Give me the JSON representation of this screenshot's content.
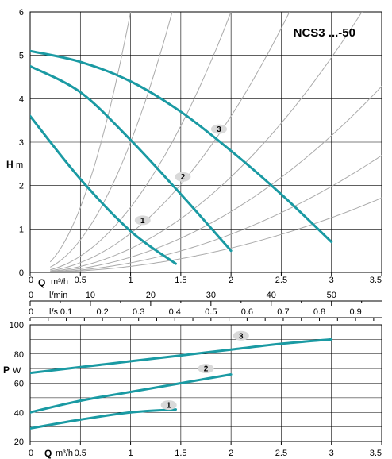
{
  "chart_data": [
    {
      "type": "line",
      "title": "NCS3 ...-50",
      "ylabel": "H",
      "yunit": "m",
      "xlabel": "Q",
      "xunit": "m³/h",
      "xlim": [
        0,
        3.5
      ],
      "ylim": [
        0,
        6
      ],
      "xticks": [
        "0",
        "0.5",
        "1",
        "1.5",
        "2",
        "2.5",
        "3",
        "3.5"
      ],
      "yticks": [
        "0",
        "1",
        "2",
        "3",
        "4",
        "5",
        "6"
      ],
      "grid": true,
      "secondary_axes": [
        {
          "unit": "l/min",
          "ticks": [
            "0",
            "10",
            "20",
            "30",
            "40",
            "50"
          ],
          "values": [
            0,
            10,
            20,
            30,
            40,
            50
          ]
        },
        {
          "unit": "l/s",
          "ticks": [
            "0",
            "0.1",
            "0.2",
            "0.3",
            "0.4",
            "0.5",
            "0.6",
            "0.7",
            "0.8",
            "0.9"
          ],
          "values": [
            0,
            0.1,
            0.2,
            0.3,
            0.4,
            0.5,
            0.6,
            0.7,
            0.8,
            0.9
          ]
        }
      ],
      "series": [
        {
          "label": "1",
          "x": [
            0,
            0.5,
            1.0,
            1.45
          ],
          "y": [
            3.6,
            2.15,
            0.95,
            0.2
          ]
        },
        {
          "label": "2",
          "x": [
            0,
            0.5,
            1.0,
            1.5,
            2.0
          ],
          "y": [
            4.75,
            4.15,
            3.05,
            1.8,
            0.5
          ]
        },
        {
          "label": "3",
          "x": [
            0,
            0.5,
            1.0,
            1.5,
            2.0,
            2.5,
            3.0
          ],
          "y": [
            5.1,
            4.85,
            4.4,
            3.7,
            2.8,
            1.8,
            0.7
          ]
        }
      ],
      "system_curve_k": [
        6.0,
        3.0,
        1.5,
        0.9,
        0.55,
        0.35,
        0.22,
        0.14
      ]
    },
    {
      "type": "line",
      "ylabel": "P",
      "yunit": "W",
      "xlabel": "Q",
      "xunit": "m³/h",
      "xlim": [
        0,
        3.5
      ],
      "ylim": [
        20,
        100
      ],
      "xticks": [
        "0",
        "0.5",
        "1",
        "1.5",
        "2",
        "2.5",
        "3",
        "3.5"
      ],
      "yticks": [
        "20",
        "40",
        "60",
        "80",
        "100"
      ],
      "grid": true,
      "series": [
        {
          "label": "1",
          "x": [
            0,
            0.5,
            1.0,
            1.45
          ],
          "y": [
            29,
            35,
            40,
            42
          ]
        },
        {
          "label": "2",
          "x": [
            0,
            0.5,
            1.0,
            1.5,
            2.0
          ],
          "y": [
            40,
            48,
            54,
            60,
            66
          ]
        },
        {
          "label": "3",
          "x": [
            0,
            0.5,
            1.0,
            1.5,
            2.0,
            2.5,
            3.0
          ],
          "y": [
            67,
            71,
            75,
            79,
            83,
            87,
            90
          ]
        }
      ]
    }
  ],
  "colors": {
    "curve": "#1a9aa3",
    "system": "#aaaaaa",
    "grid": "#000000",
    "badge": "#d9d9d9"
  }
}
